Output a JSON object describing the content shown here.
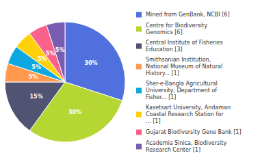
{
  "chart_data": {
    "type": "pie",
    "categories": [
      "Mined from GenBank, NCBI [6]",
      "Centre for Biodiversity\nGenomics [6]",
      "Central Institute of Fisheries\nEducation [3]",
      "Smithsonian Institution,\nNational Museum of Natural\nHistory... [1]",
      "Sher-e-Bangla Agricultural\nUniversity, Department of\nFisher... [1]",
      "Kasetsart University, Andaman\nCoastal Research Station for\n... [1]",
      "Gujarat Biodiversity Gene Bank [1]",
      "Academia Sinica, Biodiversity\nResearch Center [1]"
    ],
    "values": [
      30,
      30,
      15,
      5,
      5,
      5,
      5,
      5
    ],
    "value_labels": [
      "30%",
      "30%",
      "15%",
      "5%",
      "5%",
      "5%",
      "5%",
      "5%"
    ],
    "data_labels": true,
    "legend": "right"
  }
}
